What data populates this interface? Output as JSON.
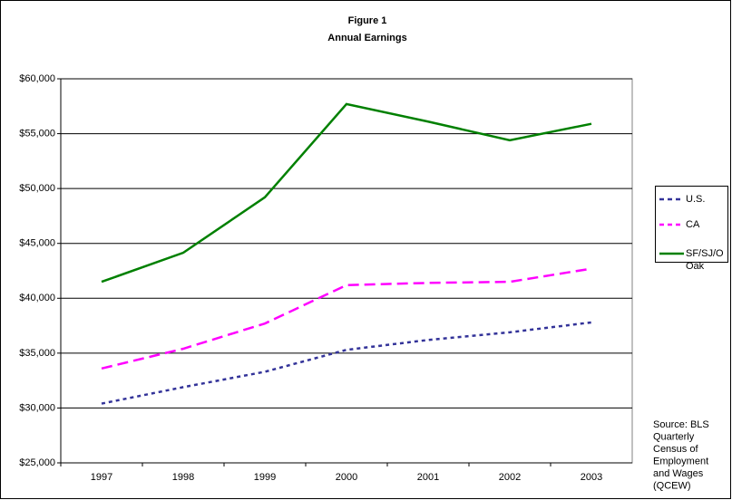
{
  "chart_data": {
    "type": "line",
    "title": [
      "Figure 1",
      "Annual Earnings"
    ],
    "categories": [
      "1997",
      "1998",
      "1999",
      "2000",
      "2001",
      "2002",
      "2003"
    ],
    "series": [
      {
        "name": "U.S.",
        "color": "#333399",
        "dash": "4,4",
        "values": [
          30400,
          31900,
          33300,
          35300,
          36200,
          36900,
          37800
        ]
      },
      {
        "name": "CA",
        "color": "#ff00ff",
        "dash": "12,6",
        "values": [
          33600,
          35400,
          37700,
          41200,
          41400,
          41500,
          42700
        ]
      },
      {
        "name": "SF/SJ/Oak",
        "color": "#008000",
        "dash": "none",
        "values": [
          41500,
          44150,
          49200,
          57700,
          56100,
          54400,
          55900
        ]
      }
    ],
    "ylim": [
      25000,
      60000
    ],
    "yticks": [
      {
        "value": 25000,
        "label": "$25,000"
      },
      {
        "value": 30000,
        "label": "$30,000"
      },
      {
        "value": 35000,
        "label": "$35,000"
      },
      {
        "value": 40000,
        "label": "$40,000"
      },
      {
        "value": 45000,
        "label": "$45,000"
      },
      {
        "value": 50000,
        "label": "$50,000"
      },
      {
        "value": 55000,
        "label": "$55,000"
      },
      {
        "value": 60000,
        "label": "$60,000"
      }
    ],
    "grid": true,
    "legend": "right",
    "source_note": [
      "Source: BLS",
      "Quarterly",
      "Census of",
      "Employment",
      "and Wages",
      "(QCEW)"
    ]
  }
}
